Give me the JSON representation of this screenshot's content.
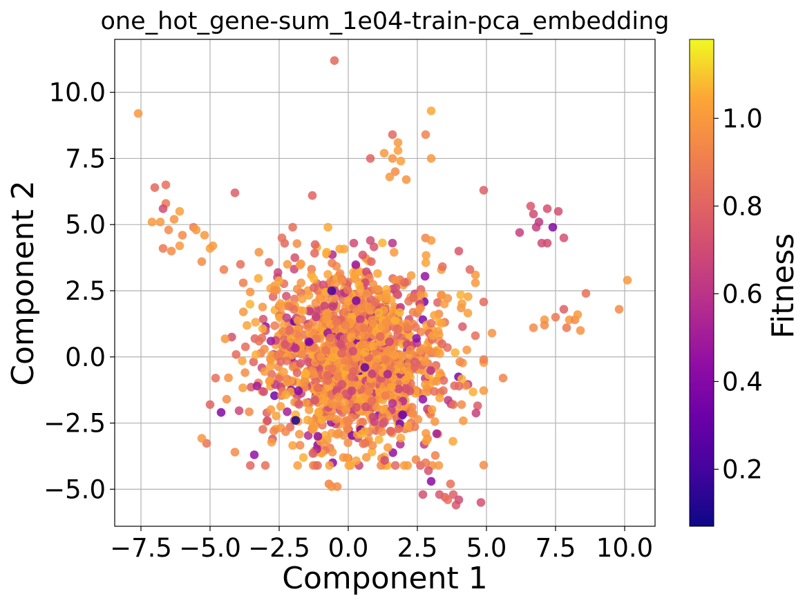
{
  "chart_data": {
    "type": "scatter",
    "title": "one_hot_gene-sum_1e04-train-pca_embedding",
    "xlabel": "Component 1",
    "ylabel": "Component 2",
    "xlim": [
      -8.45,
      11.1
    ],
    "ylim": [
      -6.4,
      12.0
    ],
    "xticks": [
      -7.5,
      -5.0,
      -2.5,
      0.0,
      2.5,
      5.0,
      7.5,
      10.0
    ],
    "xtick_labels": [
      "−7.5",
      "−5.0",
      "−2.5",
      "0.0",
      "2.5",
      "5.0",
      "7.5",
      "10.0"
    ],
    "yticks": [
      -5.0,
      -2.5,
      0.0,
      2.5,
      5.0,
      7.5,
      10.0
    ],
    "ytick_labels": [
      "−5.0",
      "−2.5",
      "0.0",
      "2.5",
      "5.0",
      "7.5",
      "10.0"
    ],
    "grid": true,
    "colorbar": {
      "label": "Fitness",
      "colormap": "plasma",
      "range": [
        0.07,
        1.18
      ],
      "ticks": [
        0.2,
        0.4,
        0.6,
        0.8,
        1.0
      ],
      "tick_labels": [
        "0.2",
        "0.4",
        "0.6",
        "0.8",
        "1.0"
      ]
    },
    "points": [
      {
        "x": -7.6,
        "y": 9.2,
        "c": 1.0
      },
      {
        "x": -0.5,
        "y": 11.2,
        "c": 0.82
      },
      {
        "x": 3.0,
        "y": 9.3,
        "c": 1.05
      },
      {
        "x": 1.6,
        "y": 8.4,
        "c": 0.82
      },
      {
        "x": 2.8,
        "y": 8.4,
        "c": 0.92
      },
      {
        "x": 1.8,
        "y": 8.1,
        "c": 1.0
      },
      {
        "x": 1.8,
        "y": 7.8,
        "c": 1.02
      },
      {
        "x": 1.3,
        "y": 7.7,
        "c": 1.0
      },
      {
        "x": 0.8,
        "y": 7.5,
        "c": 0.8
      },
      {
        "x": 1.6,
        "y": 7.5,
        "c": 0.98
      },
      {
        "x": 1.9,
        "y": 7.4,
        "c": 1.02
      },
      {
        "x": 3.0,
        "y": 7.5,
        "c": 1.0
      },
      {
        "x": 1.7,
        "y": 7.0,
        "c": 0.95
      },
      {
        "x": 1.5,
        "y": 6.8,
        "c": 1.0
      },
      {
        "x": 2.1,
        "y": 6.7,
        "c": 0.98
      },
      {
        "x": -6.6,
        "y": 6.5,
        "c": 0.85
      },
      {
        "x": -7.0,
        "y": 6.4,
        "c": 0.82
      },
      {
        "x": -4.1,
        "y": 6.2,
        "c": 0.78
      },
      {
        "x": -1.3,
        "y": 6.1,
        "c": 0.8
      },
      {
        "x": 4.9,
        "y": 6.3,
        "c": 0.78
      },
      {
        "x": -6.6,
        "y": 5.8,
        "c": 0.88
      },
      {
        "x": -6.7,
        "y": 5.6,
        "c": 0.7
      },
      {
        "x": -6.1,
        "y": 5.5,
        "c": 1.02
      },
      {
        "x": -7.1,
        "y": 5.1,
        "c": 1.0
      },
      {
        "x": -6.8,
        "y": 5.1,
        "c": 1.0
      },
      {
        "x": -6.3,
        "y": 5.2,
        "c": 0.98
      },
      {
        "x": -5.6,
        "y": 4.9,
        "c": 0.9
      },
      {
        "x": -5.5,
        "y": 4.8,
        "c": 1.0
      },
      {
        "x": -5.2,
        "y": 4.6,
        "c": 1.0
      },
      {
        "x": -6.0,
        "y": 4.6,
        "c": 0.95
      },
      {
        "x": -6.5,
        "y": 4.8,
        "c": 0.95
      },
      {
        "x": -2.4,
        "y": 4.5,
        "c": 0.85
      },
      {
        "x": -6.1,
        "y": 4.2,
        "c": 1.0
      },
      {
        "x": -6.7,
        "y": 4.1,
        "c": 0.88
      },
      {
        "x": -6.4,
        "y": 4.0,
        "c": 0.95
      },
      {
        "x": -5.0,
        "y": 4.1,
        "c": 1.02
      },
      {
        "x": -4.9,
        "y": 4.2,
        "c": 1.0
      },
      {
        "x": -5.3,
        "y": 3.6,
        "c": 0.95
      },
      {
        "x": 6.6,
        "y": 5.7,
        "c": 0.75
      },
      {
        "x": 7.2,
        "y": 5.6,
        "c": 0.72
      },
      {
        "x": 6.7,
        "y": 5.4,
        "c": 0.7
      },
      {
        "x": 7.6,
        "y": 5.5,
        "c": 0.72
      },
      {
        "x": 7.4,
        "y": 4.9,
        "c": 0.4
      },
      {
        "x": 6.8,
        "y": 4.9,
        "c": 0.65
      },
      {
        "x": 6.9,
        "y": 5.1,
        "c": 0.62
      },
      {
        "x": 6.2,
        "y": 4.7,
        "c": 0.65
      },
      {
        "x": 7.0,
        "y": 4.3,
        "c": 0.7
      },
      {
        "x": 7.2,
        "y": 4.3,
        "c": 0.7
      },
      {
        "x": 7.8,
        "y": 4.5,
        "c": 0.72
      },
      {
        "x": 6.7,
        "y": 1.1,
        "c": 0.95
      },
      {
        "x": 7.1,
        "y": 1.4,
        "c": 1.0
      },
      {
        "x": 7.1,
        "y": 1.2,
        "c": 0.95
      },
      {
        "x": 7.5,
        "y": 1.5,
        "c": 0.88
      },
      {
        "x": 7.8,
        "y": 1.8,
        "c": 0.78
      },
      {
        "x": 7.9,
        "y": 1.1,
        "c": 0.88
      },
      {
        "x": 8.0,
        "y": 1.4,
        "c": 1.0
      },
      {
        "x": 8.2,
        "y": 1.4,
        "c": 0.95
      },
      {
        "x": 8.3,
        "y": 1.6,
        "c": 1.0
      },
      {
        "x": 8.4,
        "y": 1.0,
        "c": 0.98
      },
      {
        "x": 8.6,
        "y": 2.4,
        "c": 0.85
      },
      {
        "x": 9.8,
        "y": 1.8,
        "c": 0.95
      },
      {
        "x": 10.1,
        "y": 2.9,
        "c": 1.0
      },
      {
        "x": 5.2,
        "y": 0.9,
        "c": 0.98
      },
      {
        "x": 5.6,
        "y": -0.8,
        "c": 0.92
      },
      {
        "x": 2.8,
        "y": -4.0,
        "c": 0.88
      },
      {
        "x": 2.9,
        "y": -4.3,
        "c": 0.72
      },
      {
        "x": 3.0,
        "y": -4.7,
        "c": 0.42
      },
      {
        "x": 2.7,
        "y": -5.2,
        "c": 0.72
      },
      {
        "x": 3.3,
        "y": -5.2,
        "c": 0.75
      },
      {
        "x": 3.5,
        "y": -5.3,
        "c": 0.8
      },
      {
        "x": 3.8,
        "y": -5.2,
        "c": 0.78
      },
      {
        "x": 3.6,
        "y": -5.4,
        "c": 0.85
      },
      {
        "x": 3.9,
        "y": -5.6,
        "c": 0.75
      },
      {
        "x": 4.0,
        "y": -5.4,
        "c": 0.7
      },
      {
        "x": 4.8,
        "y": -5.5,
        "c": 0.72
      },
      {
        "x": 3.7,
        "y": -4.8,
        "c": 0.85
      },
      {
        "x": -0.7,
        "y": -4.8,
        "c": 0.92
      },
      {
        "x": -0.6,
        "y": -4.9,
        "c": 0.98
      },
      {
        "x": -0.4,
        "y": -4.9,
        "c": 0.95
      },
      {
        "x": -4.1,
        "y": -3.6,
        "c": 0.95
      },
      {
        "x": -1.9,
        "y": -2.4,
        "c": 0.1
      },
      {
        "x": -0.6,
        "y": 2.5,
        "c": 0.2
      },
      {
        "x": 0.6,
        "y": -0.4,
        "c": 0.3
      },
      {
        "x": -4.6,
        "y": -2.1,
        "c": 0.4
      },
      {
        "x": -3.4,
        "y": -3.7,
        "c": 0.45
      },
      {
        "x": 3.2,
        "y": -2.9,
        "c": 0.5
      },
      {
        "x": 2.7,
        "y": -1.6,
        "c": 0.45
      },
      {
        "x": -3.3,
        "y": -1.1,
        "c": 0.5
      },
      {
        "x": -2.8,
        "y": 0.6,
        "c": 0.5
      },
      {
        "x": -1.1,
        "y": -3.0,
        "c": 0.45
      },
      {
        "x": 1.6,
        "y": 4.3,
        "c": 0.6
      },
      {
        "x": 0.8,
        "y": 4.4,
        "c": 0.7
      },
      {
        "x": 0.2,
        "y": 4.3,
        "c": 0.7
      },
      {
        "x": 4.0,
        "y": 4.0,
        "c": 0.75
      },
      {
        "x": 4.6,
        "y": 3.1,
        "c": 1.0
      },
      {
        "x": 4.4,
        "y": 3.3,
        "c": 0.82
      },
      {
        "x": 4.6,
        "y": 2.8,
        "c": 1.0
      },
      {
        "x": 4.6,
        "y": 0.8,
        "c": 0.85
      },
      {
        "x": 4.9,
        "y": -0.1,
        "c": 0.9
      },
      {
        "x": 4.1,
        "y": -1.8,
        "c": 0.95
      },
      {
        "x": 3.8,
        "y": -1.8,
        "c": 0.85
      },
      {
        "x": -5.0,
        "y": -1.8,
        "c": 0.8
      },
      {
        "x": -4.5,
        "y": 3.3,
        "c": 0.9
      },
      {
        "x": -3.9,
        "y": 3.5,
        "c": 0.85
      },
      {
        "x": -4.8,
        "y": -0.8,
        "c": 0.85
      },
      {
        "x": -4.4,
        "y": -1.6,
        "c": 0.95
      },
      {
        "x": -3.8,
        "y": 2.8,
        "c": 0.9
      },
      {
        "x": 3.0,
        "y": 4.4,
        "c": 1.0
      },
      {
        "x": -2.2,
        "y": 3.5,
        "c": 1.0
      }
    ],
    "cluster": {
      "x_mean": 0.2,
      "x_sd": 1.65,
      "y_mean": -0.1,
      "y_sd": 1.75,
      "x_range": [
        -5.3,
        4.9
      ],
      "y_range": [
        -4.1,
        4.9
      ],
      "count": 1500
    }
  }
}
